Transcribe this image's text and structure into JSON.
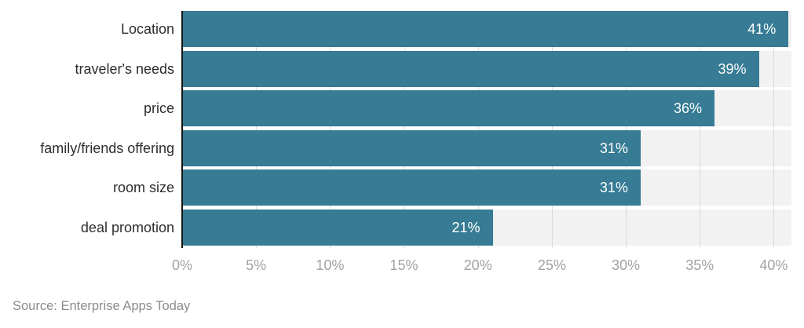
{
  "chart_data": {
    "type": "bar",
    "orientation": "horizontal",
    "title": "",
    "xlabel": "",
    "ylabel": "",
    "categories": [
      "Location",
      "traveler's needs",
      "price",
      "family/friends offering",
      "room size",
      "deal promotion"
    ],
    "values": [
      41,
      39,
      36,
      31,
      31,
      21
    ],
    "value_labels": [
      "41%",
      "39%",
      "36%",
      "31%",
      "31%",
      "21%"
    ],
    "xticks": [
      0,
      5,
      10,
      15,
      20,
      25,
      30,
      35,
      40
    ],
    "xtick_labels": [
      "0%",
      "5%",
      "10%",
      "15%",
      "20%",
      "25%",
      "30%",
      "35%",
      "40%"
    ],
    "xlim": [
      0,
      41.2
    ],
    "grid": true,
    "legend": false,
    "colors": {
      "bar": "#377B94",
      "row_track": "#f2f2f2",
      "gridline": "#dcdcdc",
      "axis_line": "#141414",
      "value_label": "#ffffff",
      "category_label": "#2d2d2d",
      "tick_label": "#a2a2a2"
    }
  },
  "source": {
    "text": "Source: Enterprise Apps Today",
    "color": "#8c8c8c"
  }
}
